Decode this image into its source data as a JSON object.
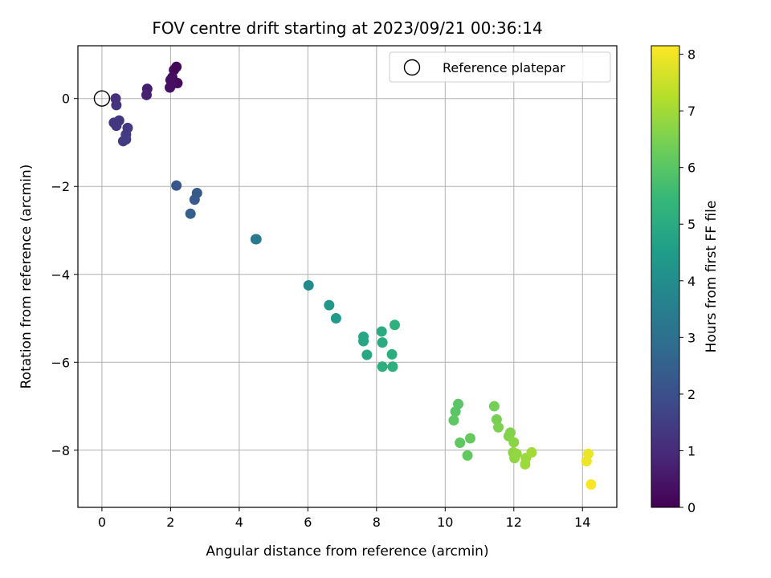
{
  "chart_data": {
    "type": "scatter",
    "title": "FOV centre drift starting at 2023/09/21 00:36:14",
    "xlabel": "Angular distance from reference (arcmin)",
    "ylabel": "Rotation from reference (arcmin)",
    "xlim": [
      -0.7,
      15.0
    ],
    "ylim": [
      -9.3,
      1.2
    ],
    "xticks": [
      0,
      2,
      4,
      6,
      8,
      10,
      12,
      14
    ],
    "yticks": [
      0,
      -2,
      -4,
      -6,
      -8
    ],
    "grid": true,
    "legend": {
      "position": "top-right",
      "entries": [
        "Reference platepar"
      ]
    },
    "reference_point": {
      "x": 0,
      "y": 0,
      "label": "Reference platepar"
    },
    "colorbar": {
      "label": "Hours from first FF file",
      "range": [
        0,
        8.15
      ],
      "ticks": [
        0,
        1,
        2,
        3,
        4,
        5,
        6,
        7,
        8
      ],
      "colormap": "viridis"
    },
    "points": [
      {
        "x": 0.4,
        "y": 0.0,
        "h": 1.1
      },
      {
        "x": 0.42,
        "y": -0.15,
        "h": 1.2
      },
      {
        "x": 0.35,
        "y": -0.55,
        "h": 1.3
      },
      {
        "x": 0.42,
        "y": -0.62,
        "h": 1.3
      },
      {
        "x": 0.5,
        "y": -0.5,
        "h": 1.35
      },
      {
        "x": 0.75,
        "y": -0.67,
        "h": 1.4
      },
      {
        "x": 0.7,
        "y": -0.82,
        "h": 1.4
      },
      {
        "x": 0.62,
        "y": -0.97,
        "h": 1.45
      },
      {
        "x": 0.7,
        "y": -0.93,
        "h": 1.45
      },
      {
        "x": 1.32,
        "y": 0.22,
        "h": 0.7
      },
      {
        "x": 1.3,
        "y": 0.08,
        "h": 0.72
      },
      {
        "x": 2.0,
        "y": 0.42,
        "h": 0.3
      },
      {
        "x": 2.05,
        "y": 0.48,
        "h": 0.3
      },
      {
        "x": 2.1,
        "y": 0.65,
        "h": 0.2
      },
      {
        "x": 2.17,
        "y": 0.72,
        "h": 0.15
      },
      {
        "x": 2.2,
        "y": 0.35,
        "h": 0.2
      },
      {
        "x": 1.98,
        "y": 0.25,
        "h": 0.35
      },
      {
        "x": 2.05,
        "y": 0.33,
        "h": 0.3
      },
      {
        "x": 2.17,
        "y": -1.98,
        "h": 2.2
      },
      {
        "x": 2.77,
        "y": -2.15,
        "h": 2.3
      },
      {
        "x": 2.7,
        "y": -2.3,
        "h": 2.35
      },
      {
        "x": 2.58,
        "y": -2.62,
        "h": 2.45
      },
      {
        "x": 4.48,
        "y": -3.2,
        "h": 3.3
      },
      {
        "x": 4.5,
        "y": -3.2,
        "h": 3.35
      },
      {
        "x": 6.02,
        "y": -4.25,
        "h": 3.9
      },
      {
        "x": 6.62,
        "y": -4.7,
        "h": 4.3
      },
      {
        "x": 6.82,
        "y": -5.0,
        "h": 4.4
      },
      {
        "x": 7.62,
        "y": -5.42,
        "h": 4.8
      },
      {
        "x": 7.62,
        "y": -5.52,
        "h": 4.8
      },
      {
        "x": 7.72,
        "y": -5.83,
        "h": 4.9
      },
      {
        "x": 8.15,
        "y": -5.3,
        "h": 5.0
      },
      {
        "x": 8.17,
        "y": -5.55,
        "h": 5.0
      },
      {
        "x": 8.17,
        "y": -6.1,
        "h": 5.1
      },
      {
        "x": 8.45,
        "y": -5.82,
        "h": 5.1
      },
      {
        "x": 8.47,
        "y": -6.1,
        "h": 5.15
      },
      {
        "x": 8.53,
        "y": -5.15,
        "h": 5.2
      },
      {
        "x": 10.38,
        "y": -6.95,
        "h": 6.0
      },
      {
        "x": 10.3,
        "y": -7.12,
        "h": 6.0
      },
      {
        "x": 10.25,
        "y": -7.32,
        "h": 6.05
      },
      {
        "x": 10.43,
        "y": -7.83,
        "h": 6.1
      },
      {
        "x": 10.65,
        "y": -8.12,
        "h": 6.15
      },
      {
        "x": 10.73,
        "y": -7.73,
        "h": 6.2
      },
      {
        "x": 11.43,
        "y": -7.0,
        "h": 6.4
      },
      {
        "x": 11.5,
        "y": -7.3,
        "h": 6.45
      },
      {
        "x": 11.55,
        "y": -7.48,
        "h": 6.5
      },
      {
        "x": 11.85,
        "y": -7.68,
        "h": 6.6
      },
      {
        "x": 11.9,
        "y": -7.6,
        "h": 6.6
      },
      {
        "x": 12.0,
        "y": -7.82,
        "h": 6.7
      },
      {
        "x": 11.98,
        "y": -8.05,
        "h": 6.75
      },
      {
        "x": 12.02,
        "y": -8.18,
        "h": 6.75
      },
      {
        "x": 12.08,
        "y": -8.08,
        "h": 6.8
      },
      {
        "x": 12.35,
        "y": -8.18,
        "h": 6.9
      },
      {
        "x": 12.33,
        "y": -8.32,
        "h": 6.95
      },
      {
        "x": 12.52,
        "y": -8.05,
        "h": 7.0
      },
      {
        "x": 14.17,
        "y": -8.08,
        "h": 7.9
      },
      {
        "x": 14.12,
        "y": -8.25,
        "h": 7.95
      },
      {
        "x": 14.25,
        "y": -8.78,
        "h": 8.1
      }
    ]
  }
}
